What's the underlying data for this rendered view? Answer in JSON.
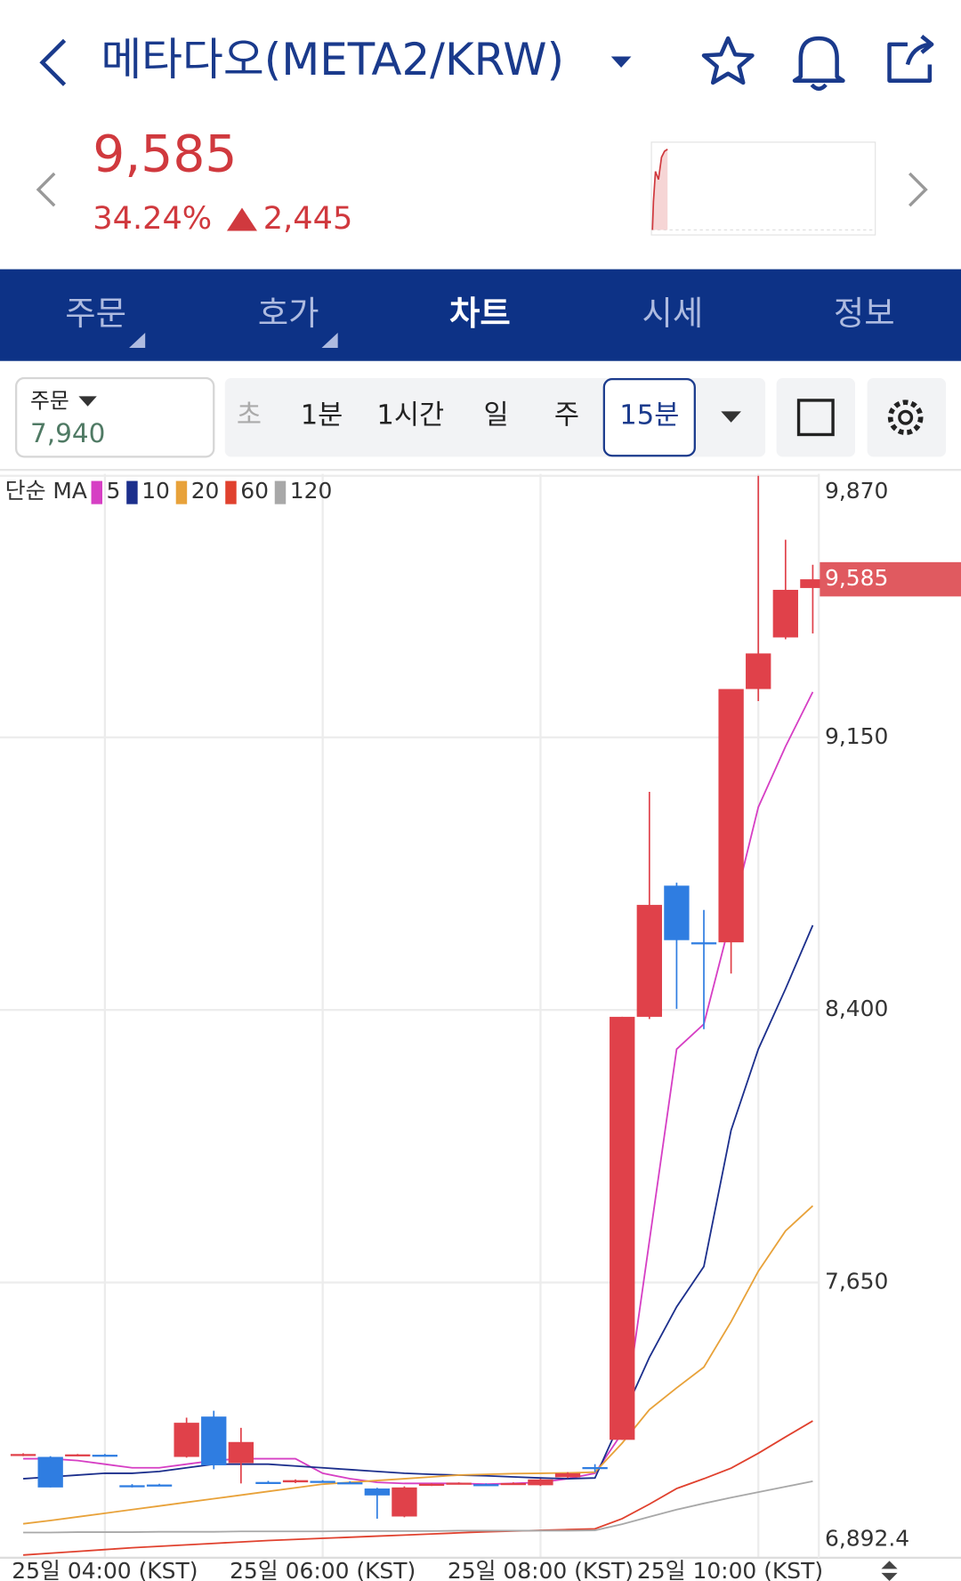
{
  "header": {
    "title": "메타다오(META2/KRW)"
  },
  "price": {
    "current": "9,585",
    "change_rate": "34.24%",
    "change": "2,445"
  },
  "tabs": [
    "주문",
    "호가",
    "차트",
    "시세",
    "정보"
  ],
  "order_box": {
    "label": "주문",
    "price": "7,940"
  },
  "intervals": [
    "초",
    "1분",
    "1시간",
    "일",
    "주",
    "15분"
  ],
  "chart_data": {
    "type": "candlestick",
    "ma_label": "단순 MA",
    "categories": [
      null,
      null,
      null,
      "25일 04:00 (KST)",
      null,
      null,
      null,
      null,
      null,
      null,
      null,
      "25일 06:00 (KST)",
      null,
      null,
      null,
      null,
      null,
      null,
      null,
      "25일 08:00 (KST)",
      null,
      null,
      null,
      null,
      null,
      null,
      null,
      "25일 10:00 (KST)",
      null,
      null
    ],
    "open": [
      7175,
      7170,
      7175,
      7176,
      7092,
      7094,
      7170,
      7281,
      7153,
      7101,
      7100,
      7104,
      7100,
      7083,
      7006,
      7094,
      7097,
      7095,
      7097,
      7092,
      7114,
      7142,
      7217,
      8381,
      8742,
      8586,
      8586,
      9283,
      9425,
      9561
    ],
    "high": [
      7180,
      7172,
      7178,
      7178,
      7095,
      7096,
      7278,
      7297,
      7250,
      7104,
      7108,
      7106,
      7103,
      7085,
      7089,
      7097,
      7100,
      7097,
      7100,
      7110,
      7128,
      7150,
      8381,
      9000,
      8750,
      8675,
      9283,
      9870,
      9694,
      9625
    ],
    "low": [
      7172,
      7086,
      7172,
      7172,
      7086,
      7090,
      7168,
      7136,
      7097,
      7098,
      7098,
      7100,
      7096,
      7000,
      7004,
      7090,
      7094,
      7091,
      7094,
      7090,
      7112,
      7128,
      7217,
      8375,
      8403,
      8347,
      8500,
      9250,
      9420,
      9436
    ],
    "close": [
      7178,
      7086,
      7177,
      7174,
      7089,
      7091,
      7264,
      7147,
      7211,
      7100,
      7106,
      7102,
      7098,
      7064,
      7086,
      7096,
      7099,
      7093,
      7098,
      7108,
      7125,
      7140,
      8381,
      8689,
      8592,
      8583,
      9283,
      9381,
      9556,
      9585
    ],
    "up_color": "#e0414a",
    "down_color": "#2f7de1",
    "series": [
      {
        "name": "5",
        "color": "#d63fc4",
        "values": [
          7165,
          7165,
          7160,
          7150,
          7140,
          7140,
          7150,
          7160,
          7165,
          7165,
          7165,
          7125,
          7110,
          7100,
          7097,
          7097,
          7097,
          7095,
          7097,
          7100,
          7110,
          7125,
          7236,
          7764,
          8292,
          8361,
          8653,
          8958,
          9125,
          9275
        ]
      },
      {
        "name": "10",
        "color": "#1c2f8c",
        "values": [
          7110,
          7115,
          7120,
          7125,
          7125,
          7130,
          7140,
          7150,
          7150,
          7150,
          7145,
          7140,
          7135,
          7130,
          7125,
          7122,
          7120,
          7118,
          7115,
          7112,
          7110,
          7112,
          7278,
          7444,
          7583,
          7694,
          8069,
          8292,
          8458,
          8633
        ]
      },
      {
        "name": "20",
        "color": "#e8a23a",
        "values": [
          6986,
          6995,
          7005,
          7015,
          7025,
          7035,
          7045,
          7055,
          7065,
          7075,
          7085,
          7095,
          7100,
          7105,
          7110,
          7115,
          7120,
          7122,
          7124,
          7125,
          7126,
          7128,
          7208,
          7300,
          7360,
          7417,
          7542,
          7681,
          7792,
          7861
        ]
      },
      {
        "name": "60",
        "color": "#e0412e",
        "values": [
          6900,
          6905,
          6910,
          6915,
          6920,
          6924,
          6928,
          6932,
          6936,
          6940,
          6943,
          6946,
          6949,
          6952,
          6955,
          6958,
          6961,
          6964,
          6966,
          6968,
          6970,
          6972,
          7000,
          7040,
          7083,
          7110,
          7139,
          7180,
          7225,
          7269
        ]
      },
      {
        "name": "120",
        "color": "#a8a8a8",
        "values": [
          6962,
          6962,
          6963,
          6963,
          6963,
          6964,
          6964,
          6964,
          6965,
          6965,
          6965,
          6965,
          6966,
          6966,
          6966,
          6966,
          6967,
          6967,
          6967,
          6967,
          6967,
          6968,
          6985,
          7005,
          7025,
          7042,
          7058,
          7073,
          7088,
          7103
        ]
      }
    ],
    "ylim": [
      6892.4,
      9875
    ],
    "yticks": [
      {
        "value": 9870,
        "label": "9,870"
      },
      {
        "value": 9150,
        "label": "9,150"
      },
      {
        "value": 8400,
        "label": "8,400"
      },
      {
        "value": 7650,
        "label": "7,650"
      },
      {
        "value": 6892.4,
        "label": "6,892.4"
      }
    ],
    "grid": true,
    "price_tag": "9,585"
  }
}
